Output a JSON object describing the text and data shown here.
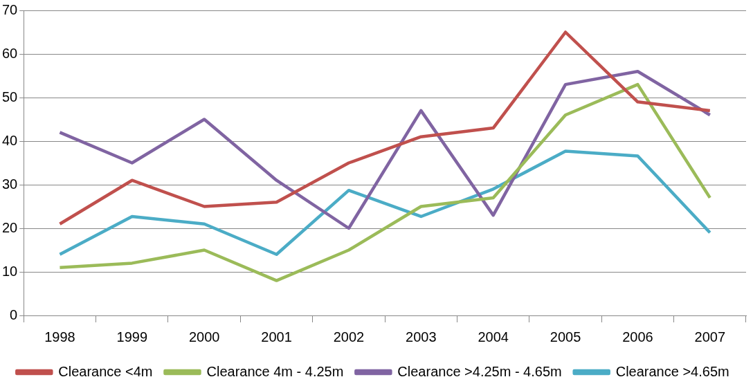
{
  "chart_data": {
    "type": "line",
    "categories": [
      "1998",
      "1999",
      "2000",
      "2001",
      "2002",
      "2003",
      "2004",
      "2005",
      "2006",
      "2007"
    ],
    "series": [
      {
        "name": "Clearance <4m",
        "color": "#c0504d",
        "values": [
          21,
          31,
          25,
          26,
          35,
          41,
          43,
          65,
          49,
          47
        ]
      },
      {
        "name": "Clearance 4m - 4.25m",
        "color": "#9bbb59",
        "values": [
          11,
          12,
          15,
          8,
          15,
          25,
          27,
          46,
          53,
          27
        ]
      },
      {
        "name": "Clearance >4.25m - 4.65m",
        "color": "#8064a2",
        "values": [
          42,
          35,
          45,
          31,
          20,
          47,
          23,
          53,
          56,
          46
        ]
      },
      {
        "name": "Clearance >4.65m",
        "color": "#4bacc6",
        "values": [
          14,
          22.7,
          21,
          14,
          28.7,
          22.7,
          29,
          37.7,
          36.6,
          19
        ]
      }
    ],
    "ylim": [
      0,
      70
    ],
    "yticks": [
      0,
      10,
      20,
      30,
      40,
      50,
      60,
      70
    ],
    "grid": "y",
    "legend": "bottom",
    "marker": "none",
    "line_style": "solid"
  }
}
